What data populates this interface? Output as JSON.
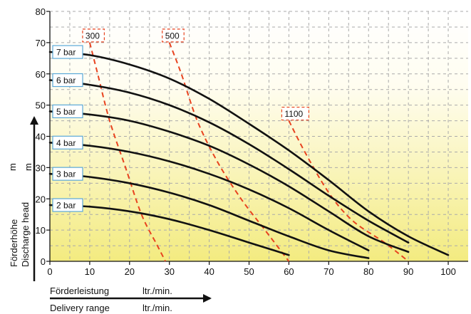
{
  "chart_data": {
    "type": "line",
    "x_axis": {
      "label_de": "Förderleistung",
      "label_en": "Delivery range",
      "unit_de": "ltr./min.",
      "unit_en": "ltr./min.",
      "range": [
        0,
        105
      ],
      "ticks": [
        0,
        10,
        20,
        30,
        40,
        50,
        60,
        70,
        80,
        90,
        100
      ]
    },
    "y_axis": {
      "label_de": "Förderhöhe",
      "label_en": "Discharge head",
      "unit_de": "m",
      "unit_en": "m",
      "range": [
        0,
        80
      ],
      "ticks": [
        0,
        10,
        20,
        30,
        40,
        50,
        60,
        70,
        80
      ]
    },
    "grid": true,
    "pressure_curves": [
      {
        "name": "2 bar",
        "points": [
          [
            0,
            18
          ],
          [
            10,
            17.5
          ],
          [
            20,
            16
          ],
          [
            30,
            13.5
          ],
          [
            40,
            10
          ],
          [
            50,
            6
          ],
          [
            60,
            2
          ]
        ]
      },
      {
        "name": "3 bar",
        "points": [
          [
            0,
            28
          ],
          [
            10,
            27
          ],
          [
            20,
            25
          ],
          [
            30,
            22
          ],
          [
            40,
            18
          ],
          [
            50,
            13
          ],
          [
            60,
            8
          ],
          [
            70,
            3.5
          ],
          [
            80,
            1
          ]
        ]
      },
      {
        "name": "4 bar",
        "points": [
          [
            0,
            38
          ],
          [
            10,
            37
          ],
          [
            20,
            35
          ],
          [
            30,
            32
          ],
          [
            40,
            28
          ],
          [
            50,
            23
          ],
          [
            60,
            17
          ],
          [
            70,
            10
          ],
          [
            80,
            3.5
          ]
        ]
      },
      {
        "name": "5 bar",
        "points": [
          [
            0,
            48
          ],
          [
            10,
            47
          ],
          [
            20,
            45
          ],
          [
            30,
            41.5
          ],
          [
            40,
            37
          ],
          [
            50,
            31
          ],
          [
            60,
            24
          ],
          [
            70,
            16
          ],
          [
            80,
            8
          ],
          [
            90,
            3
          ]
        ]
      },
      {
        "name": "6 bar",
        "points": [
          [
            0,
            58
          ],
          [
            10,
            56.5
          ],
          [
            20,
            54
          ],
          [
            30,
            50
          ],
          [
            40,
            44.5
          ],
          [
            50,
            37.5
          ],
          [
            60,
            29.5
          ],
          [
            70,
            21
          ],
          [
            80,
            13
          ],
          [
            90,
            6
          ]
        ]
      },
      {
        "name": "7 bar",
        "points": [
          [
            0,
            67
          ],
          [
            10,
            66
          ],
          [
            20,
            63
          ],
          [
            30,
            58.5
          ],
          [
            40,
            52
          ],
          [
            50,
            44
          ],
          [
            60,
            35.5
          ],
          [
            70,
            26
          ],
          [
            80,
            16
          ],
          [
            90,
            8
          ],
          [
            100,
            2
          ]
        ]
      }
    ],
    "speed_curves": [
      {
        "name": "300",
        "points": [
          [
            10,
            70
          ],
          [
            12,
            60
          ],
          [
            15,
            45
          ],
          [
            19,
            30
          ],
          [
            23,
            15
          ],
          [
            27,
            5
          ],
          [
            29,
            0
          ]
        ]
      },
      {
        "name": "500",
        "points": [
          [
            30,
            70
          ],
          [
            33,
            60
          ],
          [
            37,
            45
          ],
          [
            42,
            32
          ],
          [
            48,
            20
          ],
          [
            54,
            10
          ],
          [
            60,
            0
          ]
        ]
      },
      {
        "name": "1100",
        "points": [
          [
            60,
            45
          ],
          [
            64,
            35
          ],
          [
            70,
            22
          ],
          [
            76,
            13
          ],
          [
            84,
            6
          ],
          [
            90,
            0
          ]
        ]
      }
    ],
    "colors": {
      "pressure_line": "#111111",
      "speed_line": "#e8431f",
      "label_box_border": "#5aa8d8",
      "speed_box_border": "#e8431f",
      "background_top": "#ffffff",
      "background_bottom": "#f3eb80",
      "grid": "#aaaaaa"
    }
  }
}
